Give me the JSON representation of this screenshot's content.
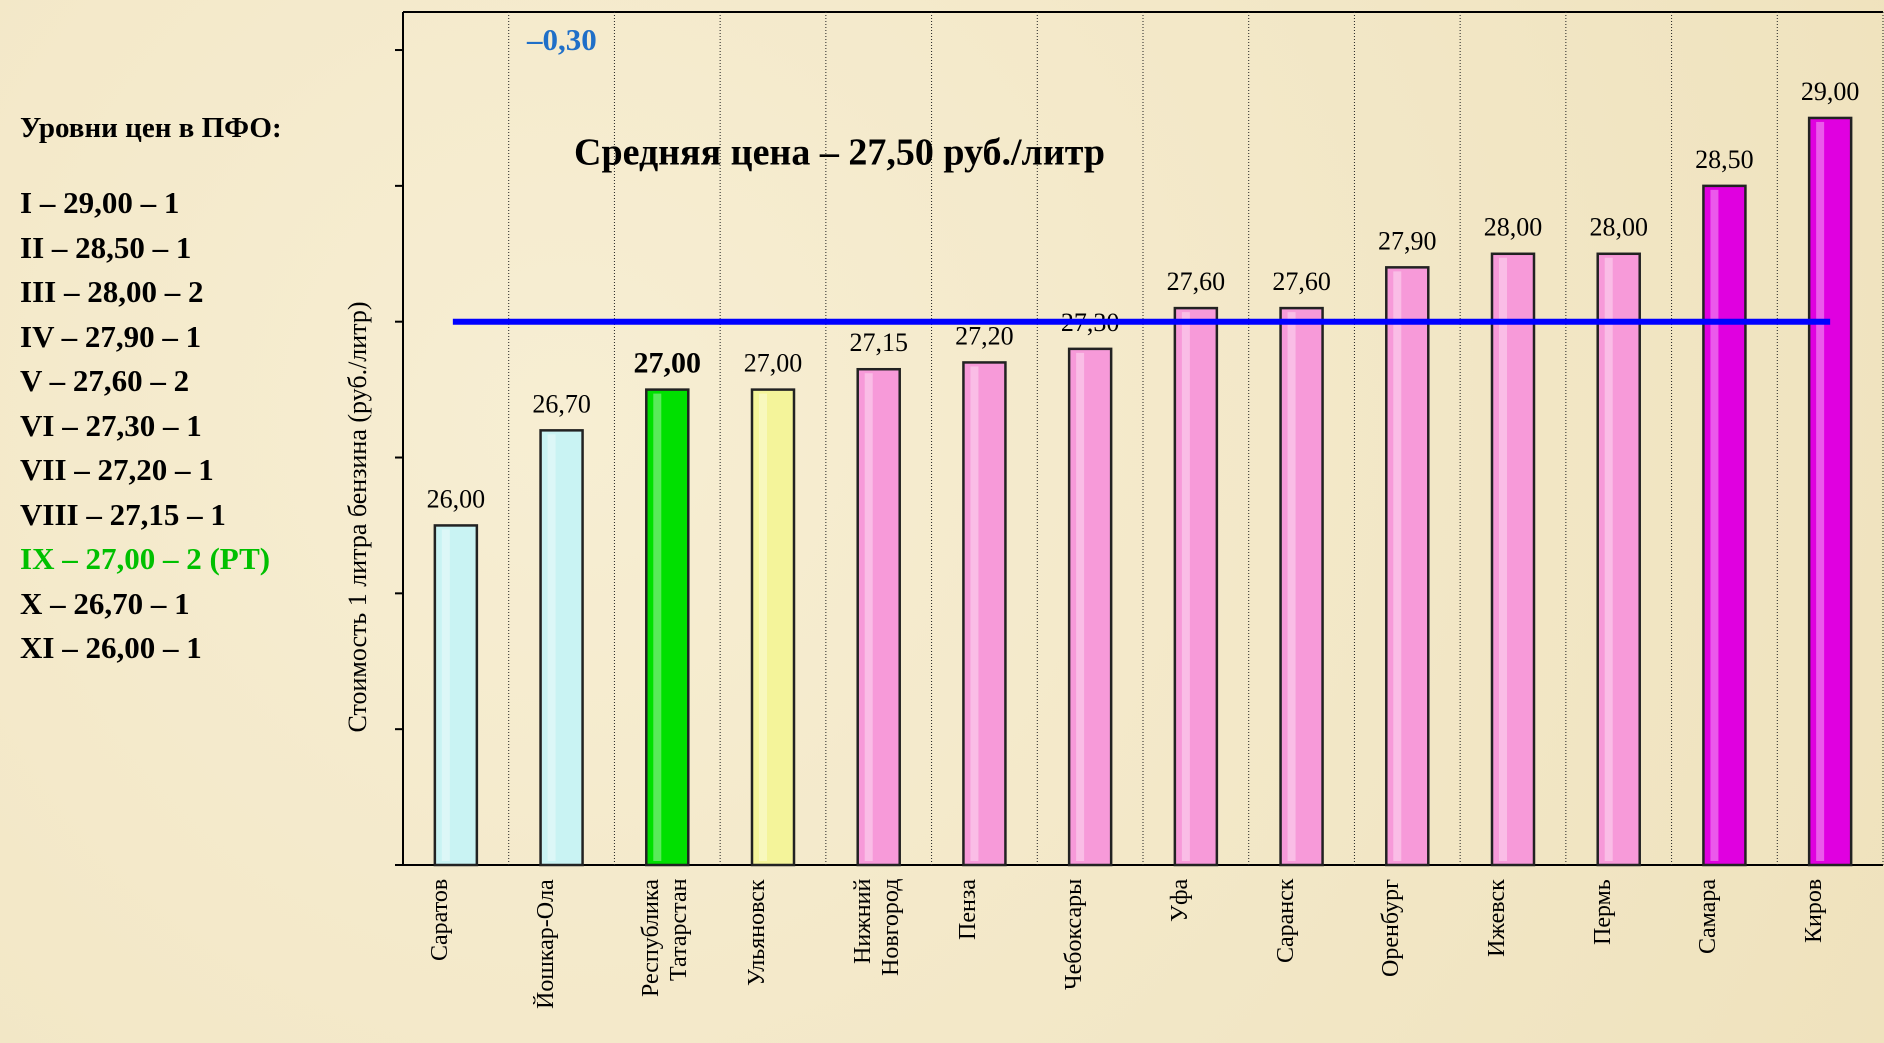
{
  "chart_data": {
    "type": "bar",
    "y_axis_label": "Стоимость 1 литра бензина  (руб./литр)",
    "categories": [
      "Саратов",
      "Йошкар-Ола",
      "Республика Татарстан",
      "Ульяновск",
      "Нижний Новгород",
      "Пенза",
      "Чебоксары",
      "Уфа",
      "Саранск",
      "Оренбург",
      "Ижевск",
      "Пермь",
      "Самара",
      "Киров"
    ],
    "values": [
      26.0,
      26.7,
      27.0,
      27.0,
      27.15,
      27.2,
      27.3,
      27.6,
      27.6,
      27.9,
      28.0,
      28.0,
      28.5,
      29.0
    ],
    "value_labels": [
      "26,00",
      "26,70",
      "27,00",
      "27,00",
      "27,15",
      "27,20",
      "27,30",
      "27,60",
      "27,60",
      "27,90",
      "28,00",
      "28,00",
      "28,50",
      "29,00"
    ],
    "colors": [
      "#c9f3f3",
      "#c9f3f3",
      "#00e000",
      "#f4f49a",
      "#f79ad9",
      "#f79ad9",
      "#f79ad9",
      "#f79ad9",
      "#f79ad9",
      "#f79ad9",
      "#f79ad9",
      "#f79ad9",
      "#e000e0",
      "#e000e0"
    ],
    "ylim": [
      23.5,
      29.78
    ],
    "yticks": [
      23.5,
      24.5,
      25.5,
      26.5,
      27.5,
      28.5,
      29.5
    ],
    "average_line": {
      "value": 27.5,
      "color": "#0000ff"
    },
    "annotations": [
      {
        "text": "Средняя цена – 27,50 руб./литр",
        "color": "#000000"
      },
      {
        "text": "–0,30",
        "color": "#1f6fc8"
      }
    ]
  },
  "side_panel": {
    "title": "Уровни цен в ПФО:",
    "items": [
      {
        "text": "I – 29,00 – 1",
        "color": "#000000"
      },
      {
        "text": "II – 28,50 – 1",
        "color": "#000000"
      },
      {
        "text": "III – 28,00 – 2",
        "color": "#000000"
      },
      {
        "text": "IV – 27,90 – 1",
        "color": "#000000"
      },
      {
        "text": "V – 27,60 – 2",
        "color": "#000000"
      },
      {
        "text": "VI – 27,30 – 1",
        "color": "#000000"
      },
      {
        "text": "VII – 27,20 – 1",
        "color": "#000000"
      },
      {
        "text": "VIII – 27,15 – 1",
        "color": "#000000"
      },
      {
        "text": "IX – 27,00 – 2 (РТ)",
        "color": "#00c000"
      },
      {
        "text": "X – 26,70 – 1",
        "color": "#000000"
      },
      {
        "text": "XI – 26,00 – 1",
        "color": "#000000"
      }
    ]
  }
}
